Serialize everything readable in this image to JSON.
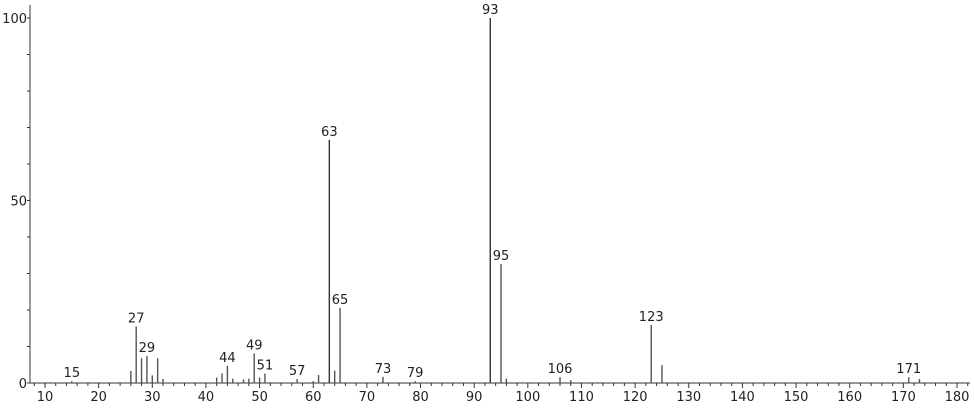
{
  "chart_data": {
    "type": "bar",
    "title": "",
    "xlabel": "",
    "ylabel": "",
    "xlim": [
      7,
      183
    ],
    "ylim": [
      0,
      100
    ],
    "grid": false,
    "x_ticks": [
      10,
      20,
      30,
      40,
      50,
      60,
      70,
      80,
      90,
      100,
      110,
      120,
      130,
      140,
      150,
      160,
      170,
      180
    ],
    "y_ticks": [
      0,
      50,
      100
    ],
    "bar_color": "#555555",
    "peaks": [
      {
        "x": 15,
        "y": 0.5,
        "label": "15"
      },
      {
        "x": 26,
        "y": 3.3
      },
      {
        "x": 27,
        "y": 15.5,
        "label": "27"
      },
      {
        "x": 28,
        "y": 6.8
      },
      {
        "x": 29,
        "y": 7.4,
        "label": "29"
      },
      {
        "x": 30,
        "y": 2.1
      },
      {
        "x": 31,
        "y": 6.8
      },
      {
        "x": 32,
        "y": 1.1
      },
      {
        "x": 42,
        "y": 1.5
      },
      {
        "x": 43,
        "y": 2.6
      },
      {
        "x": 44,
        "y": 4.7,
        "label": "44"
      },
      {
        "x": 45,
        "y": 1.2
      },
      {
        "x": 47,
        "y": 1.0
      },
      {
        "x": 48,
        "y": 1.2
      },
      {
        "x": 49,
        "y": 8.1,
        "label": "49"
      },
      {
        "x": 50,
        "y": 1.5
      },
      {
        "x": 51,
        "y": 2.6,
        "label": "51"
      },
      {
        "x": 57,
        "y": 1.1,
        "label": "57"
      },
      {
        "x": 60,
        "y": 0.5
      },
      {
        "x": 61,
        "y": 2.2
      },
      {
        "x": 63,
        "y": 66.6,
        "label": "63"
      },
      {
        "x": 64,
        "y": 3.4
      },
      {
        "x": 65,
        "y": 20.6,
        "label": "65"
      },
      {
        "x": 73,
        "y": 1.7,
        "label": "73"
      },
      {
        "x": 79,
        "y": 0.5,
        "label": "79"
      },
      {
        "x": 93,
        "y": 100,
        "label": "93"
      },
      {
        "x": 95,
        "y": 32.6,
        "label": "95"
      },
      {
        "x": 96,
        "y": 1.2
      },
      {
        "x": 106,
        "y": 1.6,
        "label": "106"
      },
      {
        "x": 108,
        "y": 0.8
      },
      {
        "x": 123,
        "y": 15.9,
        "label": "123"
      },
      {
        "x": 125,
        "y": 4.9
      },
      {
        "x": 171,
        "y": 1.6,
        "label": "171"
      },
      {
        "x": 173,
        "y": 1.1
      }
    ]
  }
}
